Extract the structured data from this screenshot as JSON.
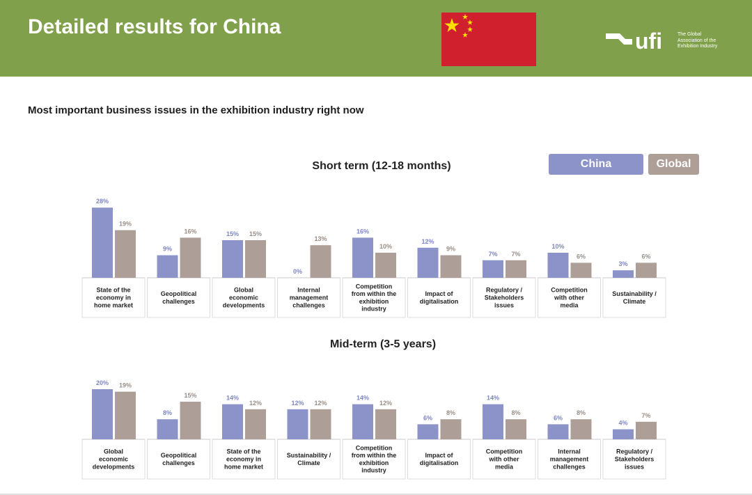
{
  "header": {
    "title": "Detailed results for China",
    "logo_text": "ufi",
    "logo_tagline": [
      "The Global",
      "Association of the",
      "Exhibition Industry"
    ],
    "bg_color": "#80a04b"
  },
  "subtitle": "Most important business issues in the exhibition industry right now",
  "legend": {
    "china": "China",
    "global": "Global"
  },
  "colors": {
    "china": "#8b93c9",
    "global": "#ad9f97",
    "china_label": "#7d86c4",
    "global_label": "#9a8e86"
  },
  "chart_data": [
    {
      "type": "bar",
      "title": "Short term (12-18 months)",
      "categories": [
        [
          "State of the",
          "economy in",
          "home market"
        ],
        [
          "Geopolitical",
          "challenges"
        ],
        [
          "Global",
          "economic",
          "developments"
        ],
        [
          "Internal",
          "management",
          "challenges"
        ],
        [
          "Competition",
          "from within the",
          "exhibition",
          "industry"
        ],
        [
          "Impact of",
          "digitalisation"
        ],
        [
          "Regulatory /",
          "Stakeholders",
          "issues"
        ],
        [
          "Competition",
          "with other",
          "media"
        ],
        [
          "Sustainability /",
          "Climate"
        ]
      ],
      "series": [
        {
          "name": "China",
          "values": [
            28,
            9,
            15,
            0,
            16,
            12,
            7,
            10,
            3
          ]
        },
        {
          "name": "Global",
          "values": [
            19,
            16,
            15,
            13,
            10,
            9,
            7,
            6,
            6
          ]
        }
      ],
      "unit": "%"
    },
    {
      "type": "bar",
      "title": "Mid-term (3-5 years)",
      "categories": [
        [
          "Global",
          "economic",
          "developments"
        ],
        [
          "Geopolitical",
          "challenges"
        ],
        [
          "State of the",
          "economy in",
          "home market"
        ],
        [
          "Sustainability /",
          "Climate"
        ],
        [
          "Competition",
          "from within the",
          "exhibition",
          "industry"
        ],
        [
          "Impact of",
          "digitalisation"
        ],
        [
          "Competition",
          "with other",
          "media"
        ],
        [
          "Internal",
          "management",
          "challenges"
        ],
        [
          "Regulatory /",
          "Stakeholders",
          "issues"
        ]
      ],
      "series": [
        {
          "name": "China",
          "values": [
            20,
            8,
            14,
            12,
            14,
            6,
            14,
            6,
            4
          ]
        },
        {
          "name": "Global",
          "values": [
            19,
            15,
            12,
            12,
            12,
            8,
            8,
            8,
            7
          ]
        }
      ],
      "unit": "%"
    }
  ]
}
